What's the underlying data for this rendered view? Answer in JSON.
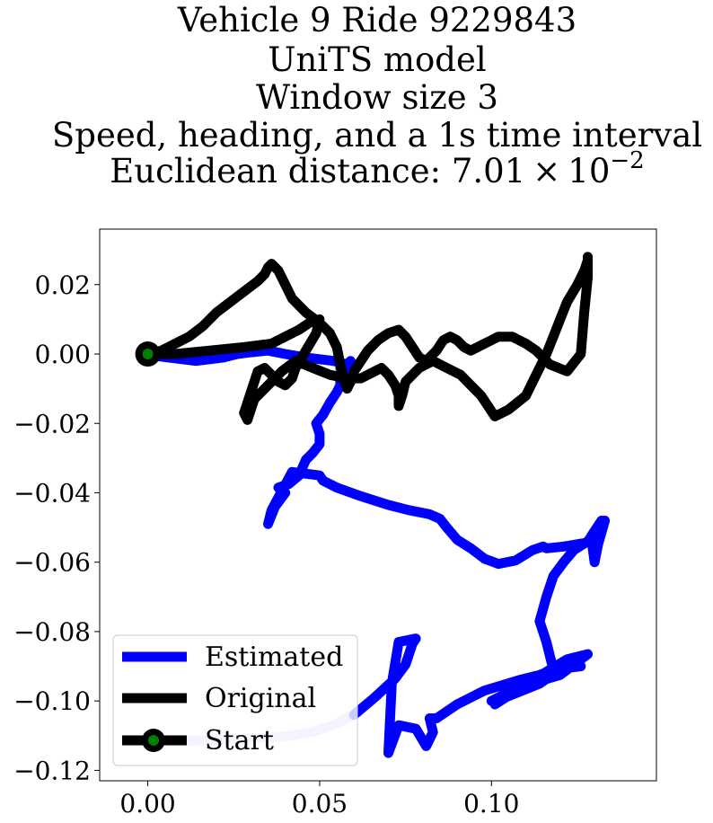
{
  "chart_data": {
    "type": "line",
    "title_lines": [
      "Vehicle 9 Ride 9229843",
      "UniTS model",
      "Window size 3",
      "Speed, heading, and a 1s time interval",
      "Euclidean distance: "
    ],
    "distance": {
      "mantissa": "7.01",
      "times": "×",
      "base": "10",
      "exponent": "−2"
    },
    "xlabel": "",
    "ylabel": "",
    "xlim": [
      -0.014,
      0.148
    ],
    "ylim": [
      -0.123,
      0.036
    ],
    "xticks": [
      0.0,
      0.05,
      0.1
    ],
    "xtick_labels": [
      "0.00",
      "0.05",
      "0.10"
    ],
    "yticks": [
      0.02,
      0.0,
      -0.02,
      -0.04,
      -0.06,
      -0.08,
      -0.1,
      -0.12
    ],
    "ytick_labels": [
      "0.02",
      "0.00",
      "−0.02",
      "−0.04",
      "−0.06",
      "−0.08",
      "−0.10",
      "−0.12"
    ],
    "grid": false,
    "legend_position": "lower-left",
    "colors": {
      "estimated": "#0000ff",
      "estimated_faded": "#c8c8ff",
      "original": "#000000",
      "start_marker": "#008000"
    },
    "series": [
      {
        "name": "Estimated",
        "faded": {
          "x": [
            0.012,
            0.022,
            0.032,
            0.042,
            0.048,
            0.054,
            0.06
          ],
          "y": [
            -0.1115,
            -0.1112,
            -0.1108,
            -0.11,
            -0.1088,
            -0.107,
            -0.104
          ]
        },
        "x": [
          0.06,
          0.066,
          0.072,
          0.075,
          0.077,
          0.078,
          0.073,
          0.071,
          0.07,
          0.073,
          0.078,
          0.081,
          0.083,
          0.082,
          0.084,
          0.09,
          0.098,
          0.108,
          0.116,
          0.122,
          0.126,
          0.125,
          0.114,
          0.104,
          0.1,
          0.108,
          0.12,
          0.128,
          0.122,
          0.112,
          0.101,
          0.11,
          0.118,
          0.116,
          0.114,
          0.116,
          0.118,
          0.121,
          0.124,
          0.128,
          0.131,
          0.132,
          0.129,
          0.13,
          0.131,
          0.133,
          0.13,
          0.121,
          0.116,
          0.115,
          0.112,
          0.107,
          0.102,
          0.098,
          0.094,
          0.09,
          0.087,
          0.085,
          0.082,
          0.076,
          0.07,
          0.062,
          0.055,
          0.051,
          0.05,
          0.046,
          0.042,
          0.039,
          0.036,
          0.035,
          0.037,
          0.04,
          0.038,
          0.041,
          0.044,
          0.046,
          0.048,
          0.05,
          0.05,
          0.049,
          0.051,
          0.053,
          0.055,
          0.056,
          0.056,
          0.057,
          0.056,
          0.058,
          0.059,
          0.058,
          0.06,
          0.058,
          0.054,
          0.05,
          0.046,
          0.04,
          0.035,
          0.03,
          0.026,
          0.022,
          0.018,
          0.014,
          0.01,
          0.006,
          0.002,
          0.0
        ],
        "y": [
          -0.104,
          -0.099,
          -0.0935,
          -0.0895,
          -0.0835,
          -0.082,
          -0.083,
          -0.095,
          -0.115,
          -0.107,
          -0.108,
          -0.113,
          -0.109,
          -0.105,
          -0.105,
          -0.101,
          -0.097,
          -0.094,
          -0.092,
          -0.0905,
          -0.09,
          -0.0875,
          -0.095,
          -0.099,
          -0.1,
          -0.096,
          -0.0925,
          -0.0865,
          -0.088,
          -0.094,
          -0.101,
          -0.094,
          -0.091,
          -0.083,
          -0.077,
          -0.07,
          -0.064,
          -0.06,
          -0.0565,
          -0.054,
          -0.05,
          -0.048,
          -0.0525,
          -0.06,
          -0.055,
          -0.048,
          -0.054,
          -0.0555,
          -0.056,
          -0.0555,
          -0.0565,
          -0.0595,
          -0.0605,
          -0.059,
          -0.056,
          -0.0535,
          -0.05,
          -0.0475,
          -0.0462,
          -0.045,
          -0.0435,
          -0.041,
          -0.0385,
          -0.0365,
          -0.035,
          -0.0345,
          -0.034,
          -0.0395,
          -0.045,
          -0.049,
          -0.044,
          -0.04,
          -0.0385,
          -0.0375,
          -0.035,
          -0.0305,
          -0.0285,
          -0.026,
          -0.023,
          -0.02,
          -0.0175,
          -0.014,
          -0.011,
          -0.009,
          -0.007,
          -0.005,
          -0.004,
          -0.003,
          -0.002,
          -0.003,
          -0.004,
          -0.003,
          -0.002,
          -0.0015,
          -0.001,
          0.0,
          0.001,
          0.0005,
          0.0,
          -0.001,
          -0.0015,
          -0.002,
          -0.0015,
          -0.001,
          -0.0005,
          0.0
        ]
      },
      {
        "name": "Original",
        "x": [
          0.0,
          0.008,
          0.018,
          0.028,
          0.036,
          0.04,
          0.044,
          0.047,
          0.05,
          0.049,
          0.046,
          0.043,
          0.042,
          0.04,
          0.038,
          0.036,
          0.034,
          0.032,
          0.031,
          0.03,
          0.029,
          0.028,
          0.029,
          0.03,
          0.031,
          0.032,
          0.034,
          0.036,
          0.039,
          0.043,
          0.048,
          0.053,
          0.058,
          0.062,
          0.066,
          0.068,
          0.07,
          0.072,
          0.073,
          0.073,
          0.074,
          0.075,
          0.079,
          0.083,
          0.087,
          0.091,
          0.094,
          0.097,
          0.099,
          0.101,
          0.105,
          0.11,
          0.113,
          0.116,
          0.118,
          0.12,
          0.122,
          0.125,
          0.127,
          0.128,
          0.128,
          0.128,
          0.127,
          0.126,
          0.122,
          0.117,
          0.113,
          0.11,
          0.108,
          0.106,
          0.104,
          0.102,
          0.1,
          0.098,
          0.096,
          0.094,
          0.092,
          0.09,
          0.088,
          0.086,
          0.084,
          0.081,
          0.079,
          0.077,
          0.075,
          0.073,
          0.07,
          0.067,
          0.064,
          0.062,
          0.06,
          0.059,
          0.058,
          0.057,
          0.056,
          0.055,
          0.053,
          0.05,
          0.046,
          0.042,
          0.04,
          0.038,
          0.036,
          0.035,
          0.034,
          0.032,
          0.028,
          0.024,
          0.02,
          0.016,
          0.012,
          0.008,
          0.004,
          0.0
        ],
        "y": [
          0.0,
          0.0,
          0.001,
          0.002,
          0.003,
          0.005,
          0.007,
          0.009,
          0.01,
          0.006,
          0.001,
          -0.004,
          -0.007,
          -0.009,
          -0.008,
          -0.006,
          -0.004,
          -0.005,
          -0.008,
          -0.011,
          -0.014,
          -0.017,
          -0.019,
          -0.016,
          -0.013,
          -0.012,
          -0.01,
          -0.008,
          -0.005,
          -0.002,
          -0.004,
          -0.006,
          -0.007,
          -0.007,
          -0.005,
          -0.004,
          -0.006,
          -0.009,
          -0.012,
          -0.015,
          -0.012,
          -0.008,
          -0.004,
          -0.002,
          -0.004,
          -0.006,
          -0.009,
          -0.012,
          -0.015,
          -0.018,
          -0.016,
          -0.012,
          -0.006,
          0.0,
          0.005,
          0.01,
          0.015,
          0.02,
          0.024,
          0.027,
          0.028,
          0.022,
          0.012,
          0.0,
          -0.005,
          -0.003,
          0.001,
          0.003,
          0.004,
          0.005,
          0.005,
          0.005,
          0.004,
          0.003,
          0.002,
          0.001,
          0.002,
          0.004,
          0.005,
          0.004,
          0.001,
          -0.002,
          -0.001,
          0.002,
          0.005,
          0.007,
          0.006,
          0.004,
          0.001,
          -0.002,
          -0.005,
          -0.008,
          -0.01,
          -0.007,
          -0.003,
          0.002,
          0.006,
          0.009,
          0.012,
          0.016,
          0.02,
          0.024,
          0.026,
          0.025,
          0.023,
          0.021,
          0.018,
          0.015,
          0.012,
          0.008,
          0.005,
          0.003,
          0.001,
          0.0
        ]
      }
    ],
    "start_point": {
      "x": 0.0,
      "y": 0.0
    },
    "legend": [
      "Estimated",
      "Original",
      "Start"
    ]
  }
}
